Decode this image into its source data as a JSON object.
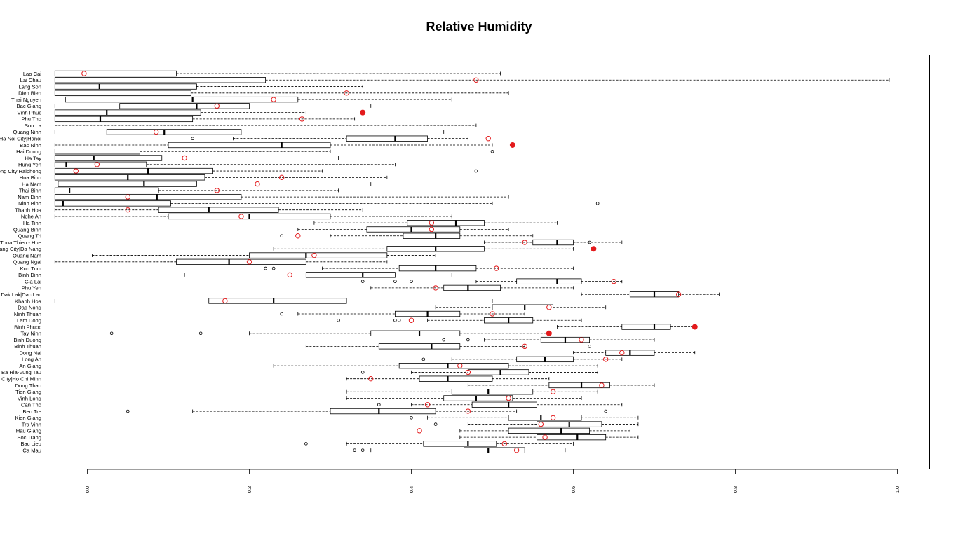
{
  "chart_data": {
    "type": "boxplot",
    "orientation": "horizontal",
    "title": "Relative Humidity",
    "xlabel": "",
    "ylabel": "",
    "xlim": [
      -0.04,
      1.04
    ],
    "xticks": [
      "0.0",
      "0.2",
      "0.4",
      "0.6",
      "0.8",
      "1.0"
    ],
    "grid": false,
    "legend": "none",
    "colors": {
      "box": "#000000",
      "marker": "#e31a1c"
    },
    "marker_legend": {
      "open_red_circle": "value",
      "filled_red_circle": "outlier value"
    },
    "rows": [
      {
        "label": "Lao Cai",
        "lw": -0.04,
        "q1": -0.04,
        "med": -0.04,
        "q3": 0.11,
        "uw": 0.51,
        "outliers": [],
        "mark": -0.004,
        "filled": false
      },
      {
        "label": "Lai Chau",
        "lw": -0.04,
        "q1": -0.04,
        "med": -0.04,
        "q3": 0.22,
        "uw": 0.99,
        "outliers": [],
        "mark": 0.48,
        "filled": false
      },
      {
        "label": "Lang Son",
        "lw": -0.04,
        "q1": -0.04,
        "med": 0.015,
        "q3": 0.135,
        "uw": 0.34,
        "outliers": [],
        "mark": null,
        "filled": false
      },
      {
        "label": "Dien Bien",
        "lw": -0.04,
        "q1": -0.04,
        "med": -0.04,
        "q3": 0.128,
        "uw": 0.52,
        "outliers": [],
        "mark": 0.32,
        "filled": false
      },
      {
        "label": "Thai Nguyen",
        "lw": -0.027,
        "q1": -0.027,
        "med": 0.13,
        "q3": 0.26,
        "uw": 0.45,
        "outliers": [],
        "mark": 0.23,
        "filled": false
      },
      {
        "label": "Bac Giang",
        "lw": -0.04,
        "q1": 0.04,
        "med": 0.135,
        "q3": 0.2,
        "uw": 0.35,
        "outliers": [],
        "mark": 0.16,
        "filled": false
      },
      {
        "label": "Vinh Phuc",
        "lw": -0.04,
        "q1": -0.04,
        "med": 0.024,
        "q3": 0.14,
        "uw": 0.27,
        "outliers": [],
        "mark": 0.34,
        "filled": true
      },
      {
        "label": "Phu Tho",
        "lw": -0.04,
        "q1": -0.04,
        "med": 0.016,
        "q3": 0.13,
        "uw": 0.33,
        "outliers": [],
        "mark": 0.265,
        "filled": false
      },
      {
        "label": "Son La",
        "lw": -0.04,
        "q1": -0.04,
        "med": -0.04,
        "q3": -0.04,
        "uw": 0.48,
        "outliers": [],
        "mark": null,
        "filled": false
      },
      {
        "label": "Quang Ninh",
        "lw": -0.04,
        "q1": 0.024,
        "med": 0.095,
        "q3": 0.19,
        "uw": 0.44,
        "outliers": [],
        "mark": 0.085,
        "filled": false
      },
      {
        "label": "Ha Noi City|Hanoi",
        "lw": 0.18,
        "q1": 0.32,
        "med": 0.38,
        "q3": 0.42,
        "uw": 0.47,
        "outliers": [
          0.13
        ],
        "mark": 0.495,
        "filled": false
      },
      {
        "label": "Bac Ninh",
        "lw": -0.04,
        "q1": 0.1,
        "med": 0.24,
        "q3": 0.3,
        "uw": 0.5,
        "outliers": [],
        "mark": 0.525,
        "filled": true
      },
      {
        "label": "Hai Duong",
        "lw": -0.04,
        "q1": -0.04,
        "med": -0.04,
        "q3": 0.065,
        "uw": 0.3,
        "outliers": [
          0.5
        ],
        "mark": null,
        "filled": false
      },
      {
        "label": "Ha Tay",
        "lw": -0.04,
        "q1": -0.04,
        "med": 0.008,
        "q3": 0.092,
        "uw": 0.31,
        "outliers": [],
        "mark": 0.12,
        "filled": false
      },
      {
        "label": "Hung Yen",
        "lw": -0.04,
        "q1": -0.04,
        "med": -0.026,
        "q3": 0.073,
        "uw": 0.38,
        "outliers": [],
        "mark": 0.012,
        "filled": false
      },
      {
        "label": "Hai Phong City|Haiphong",
        "lw": -0.04,
        "q1": -0.04,
        "med": 0.075,
        "q3": 0.155,
        "uw": 0.29,
        "outliers": [
          0.48
        ],
        "mark": -0.014,
        "filled": false
      },
      {
        "label": "Hoa Binh",
        "lw": -0.04,
        "q1": -0.04,
        "med": 0.05,
        "q3": 0.145,
        "uw": 0.37,
        "outliers": [],
        "mark": 0.24,
        "filled": false
      },
      {
        "label": "Ha Nam",
        "lw": -0.036,
        "q1": -0.036,
        "med": 0.07,
        "q3": 0.135,
        "uw": 0.35,
        "outliers": [],
        "mark": 0.21,
        "filled": false
      },
      {
        "label": "Thai Binh",
        "lw": -0.04,
        "q1": -0.04,
        "med": -0.022,
        "q3": 0.088,
        "uw": 0.31,
        "outliers": [],
        "mark": 0.16,
        "filled": false
      },
      {
        "label": "Nam Dinh",
        "lw": -0.04,
        "q1": -0.04,
        "med": 0.086,
        "q3": 0.19,
        "uw": 0.52,
        "outliers": [],
        "mark": 0.05,
        "filled": false
      },
      {
        "label": "Ninh Binh",
        "lw": -0.04,
        "q1": -0.04,
        "med": -0.03,
        "q3": 0.103,
        "uw": 0.5,
        "outliers": [
          0.63
        ],
        "mark": null,
        "filled": false
      },
      {
        "label": "Thanh Hoa",
        "lw": -0.04,
        "q1": 0.088,
        "med": 0.15,
        "q3": 0.236,
        "uw": 0.34,
        "outliers": [],
        "mark": 0.05,
        "filled": false
      },
      {
        "label": "Nghe An",
        "lw": -0.04,
        "q1": 0.1,
        "med": 0.2,
        "q3": 0.3,
        "uw": 0.45,
        "outliers": [],
        "mark": 0.19,
        "filled": false
      },
      {
        "label": "Ha Tinh",
        "lw": 0.28,
        "q1": 0.395,
        "med": 0.455,
        "q3": 0.49,
        "uw": 0.58,
        "outliers": [],
        "mark": 0.425,
        "filled": false
      },
      {
        "label": "Quang Binh",
        "lw": 0.26,
        "q1": 0.345,
        "med": 0.4,
        "q3": 0.46,
        "uw": 0.52,
        "outliers": [],
        "mark": 0.425,
        "filled": false
      },
      {
        "label": "Quang Tri",
        "lw": 0.3,
        "q1": 0.39,
        "med": 0.43,
        "q3": 0.46,
        "uw": 0.55,
        "outliers": [
          0.24
        ],
        "mark": 0.26,
        "filled": false
      },
      {
        "label": "Thua Thien - Hue",
        "lw": 0.49,
        "q1": 0.55,
        "med": 0.58,
        "q3": 0.6,
        "uw": 0.66,
        "outliers": [
          0.62
        ],
        "mark": 0.54,
        "filled": false
      },
      {
        "label": "Da Nang City|Da Nang",
        "lw": 0.23,
        "q1": 0.37,
        "med": 0.43,
        "q3": 0.49,
        "uw": 0.6,
        "outliers": [],
        "mark": 0.625,
        "filled": true
      },
      {
        "label": "Quang Nam",
        "lw": 0.006,
        "q1": 0.2,
        "med": 0.27,
        "q3": 0.37,
        "uw": 0.43,
        "outliers": [],
        "mark": 0.28,
        "filled": false
      },
      {
        "label": "Quang Ngai",
        "lw": -0.04,
        "q1": 0.11,
        "med": 0.175,
        "q3": 0.27,
        "uw": 0.37,
        "outliers": [],
        "mark": 0.2,
        "filled": false
      },
      {
        "label": "Kon Tum",
        "lw": 0.29,
        "q1": 0.385,
        "med": 0.43,
        "q3": 0.48,
        "uw": 0.6,
        "outliers": [
          0.22,
          0.23
        ],
        "mark": 0.505,
        "filled": false
      },
      {
        "label": "Binh Dinh",
        "lw": 0.12,
        "q1": 0.27,
        "med": 0.34,
        "q3": 0.38,
        "uw": 0.45,
        "outliers": [],
        "mark": 0.25,
        "filled": false
      },
      {
        "label": "Gia Lai",
        "lw": 0.48,
        "q1": 0.53,
        "med": 0.58,
        "q3": 0.61,
        "uw": 0.66,
        "outliers": [
          0.34,
          0.38,
          0.4
        ],
        "mark": 0.65,
        "filled": false
      },
      {
        "label": "Phu Yen",
        "lw": 0.35,
        "q1": 0.44,
        "med": 0.47,
        "q3": 0.51,
        "uw": 0.6,
        "outliers": [],
        "mark": 0.43,
        "filled": false
      },
      {
        "label": "Dak Lak|Dac Lac",
        "lw": 0.61,
        "q1": 0.67,
        "med": 0.7,
        "q3": 0.73,
        "uw": 0.78,
        "outliers": [],
        "mark": 0.73,
        "filled": false
      },
      {
        "label": "Khanh Hoa",
        "lw": -0.04,
        "q1": 0.15,
        "med": 0.23,
        "q3": 0.32,
        "uw": 0.5,
        "outliers": [],
        "mark": 0.17,
        "filled": false
      },
      {
        "label": "Dac Nong",
        "lw": 0.43,
        "q1": 0.5,
        "med": 0.54,
        "q3": 0.575,
        "uw": 0.64,
        "outliers": [],
        "mark": 0.57,
        "filled": false
      },
      {
        "label": "Ninh Thuan",
        "lw": 0.26,
        "q1": 0.38,
        "med": 0.42,
        "q3": 0.46,
        "uw": 0.54,
        "outliers": [
          0.24
        ],
        "mark": 0.5,
        "filled": false
      },
      {
        "label": "Lam Dong",
        "lw": 0.42,
        "q1": 0.49,
        "med": 0.52,
        "q3": 0.55,
        "uw": 0.61,
        "outliers": [
          0.31,
          0.38,
          0.385
        ],
        "mark": 0.4,
        "filled": false
      },
      {
        "label": "Binh Phuoc",
        "lw": 0.58,
        "q1": 0.66,
        "med": 0.7,
        "q3": 0.72,
        "uw": 0.75,
        "outliers": [],
        "mark": 0.75,
        "filled": true
      },
      {
        "label": "Tay Ninh",
        "lw": 0.2,
        "q1": 0.35,
        "med": 0.41,
        "q3": 0.46,
        "uw": 0.57,
        "outliers": [
          0.03,
          0.14
        ],
        "mark": 0.57,
        "filled": true
      },
      {
        "label": "Binh Duong",
        "lw": 0.49,
        "q1": 0.56,
        "med": 0.59,
        "q3": 0.62,
        "uw": 0.7,
        "outliers": [
          0.44,
          0.47
        ],
        "mark": 0.61,
        "filled": false
      },
      {
        "label": "Binh Thuan",
        "lw": 0.27,
        "q1": 0.36,
        "med": 0.425,
        "q3": 0.46,
        "uw": 0.54,
        "outliers": [
          0.62
        ],
        "mark": 0.54,
        "filled": false
      },
      {
        "label": "Dong Nai",
        "lw": 0.6,
        "q1": 0.64,
        "med": 0.67,
        "q3": 0.7,
        "uw": 0.75,
        "outliers": [],
        "mark": 0.66,
        "filled": false
      },
      {
        "label": "Long An",
        "lw": 0.45,
        "q1": 0.53,
        "med": 0.565,
        "q3": 0.6,
        "uw": 0.66,
        "outliers": [
          0.415
        ],
        "mark": 0.64,
        "filled": false
      },
      {
        "label": "An Giang",
        "lw": 0.23,
        "q1": 0.385,
        "med": 0.445,
        "q3": 0.52,
        "uw": 0.63,
        "outliers": [],
        "mark": 0.46,
        "filled": false
      },
      {
        "label": "Ba Ria-Vung Tau",
        "lw": 0.4,
        "q1": 0.47,
        "med": 0.51,
        "q3": 0.545,
        "uw": 0.63,
        "outliers": [
          0.34
        ],
        "mark": 0.47,
        "filled": false
      },
      {
        "label": "Ho Chi Minh City|Ho Chi Minh",
        "lw": 0.32,
        "q1": 0.41,
        "med": 0.445,
        "q3": 0.5,
        "uw": 0.57,
        "outliers": [],
        "mark": 0.35,
        "filled": false
      },
      {
        "label": "Dong Thap",
        "lw": 0.47,
        "q1": 0.57,
        "med": 0.61,
        "q3": 0.645,
        "uw": 0.7,
        "outliers": [],
        "mark": 0.635,
        "filled": false
      },
      {
        "label": "Tien Giang",
        "lw": 0.32,
        "q1": 0.45,
        "med": 0.495,
        "q3": 0.55,
        "uw": 0.63,
        "outliers": [],
        "mark": 0.575,
        "filled": false
      },
      {
        "label": "Vinh Long",
        "lw": 0.32,
        "q1": 0.44,
        "med": 0.48,
        "q3": 0.525,
        "uw": 0.61,
        "outliers": [],
        "mark": 0.52,
        "filled": false
      },
      {
        "label": "Can Tho",
        "lw": 0.4,
        "q1": 0.475,
        "med": 0.52,
        "q3": 0.555,
        "uw": 0.66,
        "outliers": [
          0.36
        ],
        "mark": 0.42,
        "filled": false
      },
      {
        "label": "Ben Tre",
        "lw": 0.13,
        "q1": 0.3,
        "med": 0.36,
        "q3": 0.43,
        "uw": 0.53,
        "outliers": [
          0.05,
          0.64
        ],
        "mark": 0.47,
        "filled": false
      },
      {
        "label": "Kien Giang",
        "lw": 0.42,
        "q1": 0.52,
        "med": 0.56,
        "q3": 0.61,
        "uw": 0.68,
        "outliers": [
          0.4
        ],
        "mark": 0.575,
        "filled": false
      },
      {
        "label": "Tra Vinh",
        "lw": 0.47,
        "q1": 0.555,
        "med": 0.595,
        "q3": 0.635,
        "uw": 0.68,
        "outliers": [
          0.43
        ],
        "mark": 0.56,
        "filled": false
      },
      {
        "label": "Hau Giang",
        "lw": 0.46,
        "q1": 0.52,
        "med": 0.585,
        "q3": 0.62,
        "uw": 0.67,
        "outliers": [],
        "mark": 0.41,
        "filled": false
      },
      {
        "label": "Soc Trang",
        "lw": 0.46,
        "q1": 0.555,
        "med": 0.605,
        "q3": 0.64,
        "uw": 0.68,
        "outliers": [],
        "mark": 0.565,
        "filled": false
      },
      {
        "label": "Bac Lieu",
        "lw": 0.32,
        "q1": 0.415,
        "med": 0.47,
        "q3": 0.505,
        "uw": 0.6,
        "outliers": [
          0.27
        ],
        "mark": 0.515,
        "filled": false
      },
      {
        "label": "Ca Mau",
        "lw": 0.35,
        "q1": 0.465,
        "med": 0.495,
        "q3": 0.54,
        "uw": 0.59,
        "outliers": [
          0.33,
          0.34
        ],
        "mark": 0.53,
        "filled": false
      }
    ]
  }
}
